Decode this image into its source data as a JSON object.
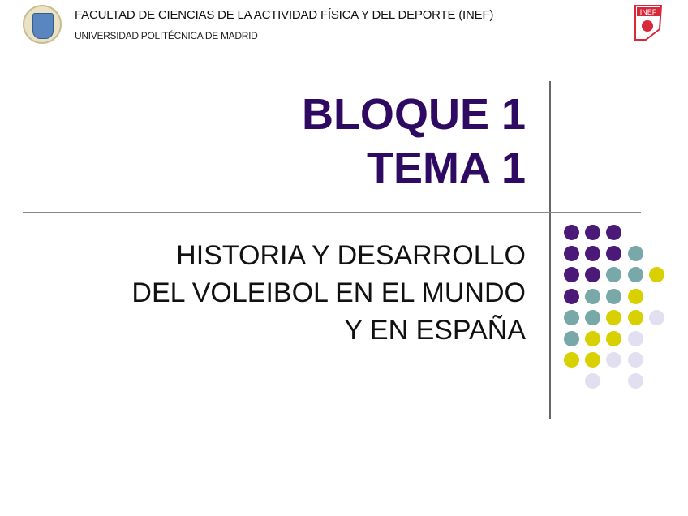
{
  "header": {
    "faculty": "FACULTAD DE CIENCIAS DE LA ACTIVIDAD FÍSICA Y DEL DEPORTE (INEF)",
    "university": "UNIVERSIDAD POLITÉCNICA DE MADRID",
    "inef_logo_text": "INEF"
  },
  "title": {
    "line1": "BLOQUE 1",
    "line2": "TEMA 1"
  },
  "subtitle": {
    "line1": "HISTORIA Y DESARROLLO",
    "line2": "DEL VOLEIBOL EN EL MUNDO",
    "line3": "Y EN ESPAÑA"
  },
  "colors": {
    "title": "#2e0a62",
    "purple": "#4b1a78",
    "teal": "#78a8a8",
    "yellow": "#d8d000",
    "lavender": "#e2e0f0",
    "inef_red": "#d8283a"
  }
}
